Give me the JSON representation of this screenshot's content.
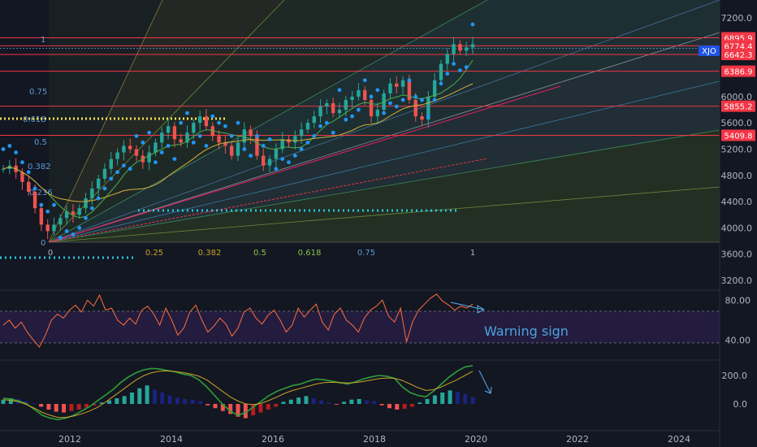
{
  "chart_data": [
    {
      "type": "line",
      "panel": "price",
      "symbol": "XJO",
      "ylim": [
        3200,
        7400
      ],
      "y_ticks": [
        "7200.0",
        "6800.0",
        "6400.0",
        "6000.0",
        "5600.0",
        "5200.0",
        "4800.0",
        "4400.0",
        "4000.0",
        "3600.0",
        "3200.0"
      ],
      "y_tick_values": [
        7200,
        6800,
        6400,
        6000,
        5600,
        5200,
        4800,
        4400,
        4000,
        3600,
        3200
      ],
      "price_tags": [
        {
          "label": "6895.9",
          "value": 6895.9,
          "color": "#f23645"
        },
        {
          "label": "6774.4",
          "value": 6774.4,
          "color": "#f23645"
        },
        {
          "label": "6642.3",
          "value": 6642.3,
          "color": "#f23645"
        },
        {
          "label": "6386.9",
          "value": 6386.9,
          "color": "#f23645"
        },
        {
          "label": "5855.2",
          "value": 5855.2,
          "color": "#f23645"
        },
        {
          "label": "5409.8",
          "value": 5409.8,
          "color": "#f23645"
        }
      ],
      "fib_price_levels": [
        "1",
        "0.75",
        "0.618",
        "0.5",
        "0.382",
        "0.236",
        "0"
      ],
      "fib_time_levels": [
        "0",
        "0.25",
        "0.382",
        "0.5",
        "0.618",
        "0.75",
        "1"
      ],
      "series": [
        {
          "values": [
            4900,
            4950,
            4850,
            4700,
            4550,
            4300,
            4050,
            3950,
            4050,
            4150,
            4250,
            4200,
            4300,
            4450,
            4600,
            4750,
            4900,
            5050,
            5150,
            5250,
            5200,
            5100,
            5000,
            5150,
            5300,
            5450,
            5550,
            5350,
            5300,
            5450,
            5600,
            5700,
            5550,
            5400,
            5300,
            5250,
            5100,
            5300,
            5500,
            5400,
            5100,
            4950,
            5050,
            5200,
            5350,
            5300,
            5400,
            5500,
            5600,
            5700,
            5850,
            5900,
            5750,
            5800,
            5950,
            6000,
            6100,
            5950,
            5700,
            5800,
            6050,
            6200,
            6150,
            6250,
            5950,
            5700,
            5650,
            6000,
            6250,
            6500,
            6650,
            6800,
            6700,
            6750,
            6800
          ]
        }
      ],
      "x_ticks": [
        "2012",
        "2014",
        "2016",
        "2018",
        "2020",
        "2022",
        "2024"
      ],
      "x_tick_values": [
        2012,
        2014,
        2016,
        2018,
        2020,
        2022,
        2024
      ]
    },
    {
      "type": "line",
      "panel": "rsi",
      "ylim": [
        20,
        90
      ],
      "y_ticks": [
        "80.00",
        "40.00"
      ],
      "y_tick_values": [
        80,
        40
      ],
      "series": [
        {
          "values": [
            55,
            60,
            52,
            58,
            48,
            40,
            33,
            45,
            60,
            66,
            62,
            70,
            75,
            68,
            80,
            74,
            85,
            70,
            72,
            60,
            55,
            62,
            56,
            70,
            74,
            66,
            55,
            72,
            60,
            45,
            52,
            68,
            75,
            60,
            48,
            54,
            62,
            56,
            44,
            52,
            68,
            72,
            62,
            56,
            65,
            70,
            60,
            48,
            55,
            72,
            63,
            70,
            76,
            58,
            50,
            66,
            72,
            60,
            55,
            48,
            62,
            70,
            74,
            80,
            64,
            58,
            72,
            38,
            58,
            70,
            76,
            82,
            86,
            79,
            75,
            70,
            74,
            72,
            76
          ]
        }
      ],
      "annotation": "Warning sign"
    },
    {
      "type": "bar",
      "panel": "macd",
      "ylim": [
        -120,
        260
      ],
      "y_ticks": [
        "200.0",
        "0.0"
      ],
      "y_tick_values": [
        200,
        0
      ],
      "histogram": [
        30,
        40,
        35,
        20,
        5,
        -20,
        -40,
        -55,
        -60,
        -50,
        -40,
        -25,
        -10,
        10,
        25,
        40,
        55,
        80,
        110,
        130,
        100,
        80,
        60,
        45,
        35,
        30,
        20,
        -10,
        -30,
        -50,
        -70,
        -90,
        -100,
        -80,
        -60,
        -40,
        -20,
        15,
        30,
        45,
        55,
        40,
        25,
        10,
        -5,
        15,
        30,
        35,
        25,
        20,
        -10,
        -30,
        -40,
        -35,
        -20,
        10,
        35,
        60,
        80,
        95,
        85,
        70,
        50
      ],
      "macd": [
        40,
        35,
        20,
        0,
        -40,
        -80,
        -100,
        -110,
        -100,
        -80,
        -50,
        -20,
        20,
        60,
        100,
        150,
        190,
        220,
        240,
        250,
        245,
        235,
        225,
        210,
        200,
        170,
        120,
        60,
        0,
        -50,
        -80,
        -60,
        -20,
        20,
        60,
        90,
        110,
        130,
        140,
        160,
        175,
        170,
        160,
        150,
        140,
        155,
        175,
        190,
        200,
        195,
        180,
        120,
        80,
        60,
        50,
        90,
        140,
        190,
        230,
        260,
        270
      ],
      "signal": [
        30,
        25,
        15,
        -5,
        -30,
        -60,
        -80,
        -95,
        -95,
        -85,
        -70,
        -50,
        -25,
        10,
        50,
        90,
        130,
        170,
        200,
        220,
        230,
        232,
        228,
        220,
        210,
        195,
        170,
        130,
        90,
        50,
        20,
        0,
        -5,
        5,
        25,
        50,
        75,
        95,
        110,
        125,
        140,
        150,
        152,
        150,
        148,
        150,
        158,
        168,
        178,
        182,
        180,
        165,
        140,
        115,
        95,
        100,
        120,
        145,
        170,
        200,
        230
      ]
    }
  ],
  "xjo_label": "XJO"
}
